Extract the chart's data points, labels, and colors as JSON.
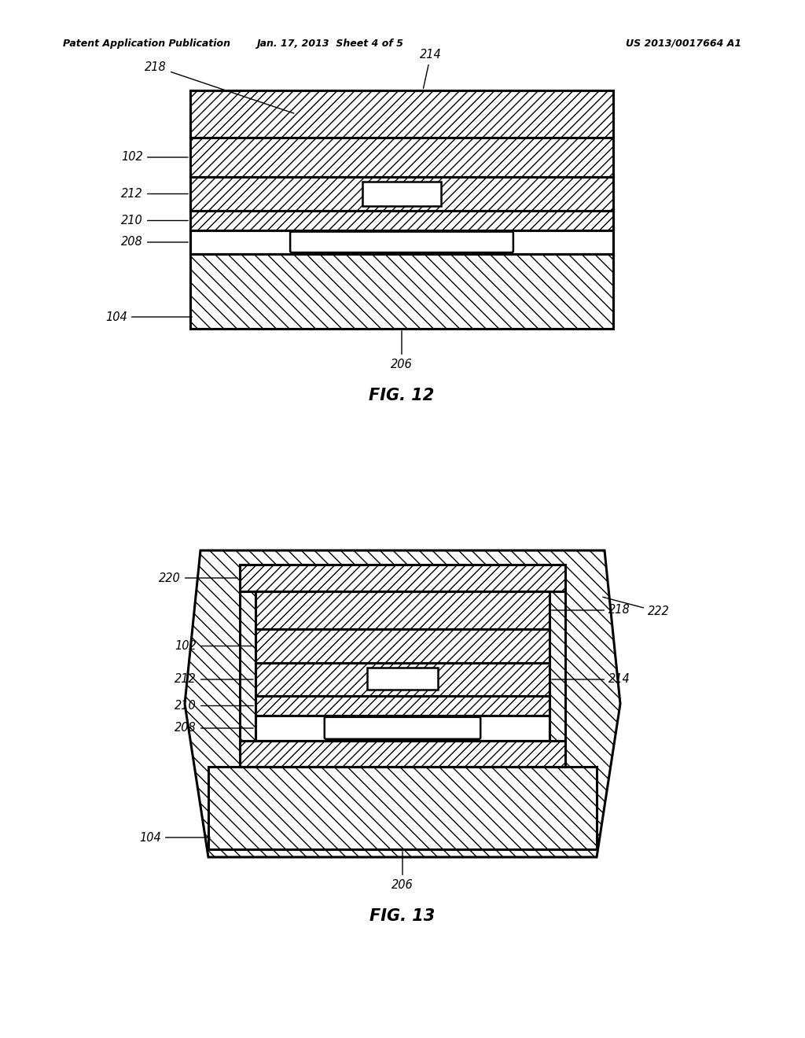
{
  "bg_color": "#ffffff",
  "header_left": "Patent Application Publication",
  "header_center": "Jan. 17, 2013  Sheet 4 of 5",
  "header_right": "US 2013/0017664 A1",
  "fig12_title": "FIG. 12",
  "fig13_title": "FIG. 13"
}
